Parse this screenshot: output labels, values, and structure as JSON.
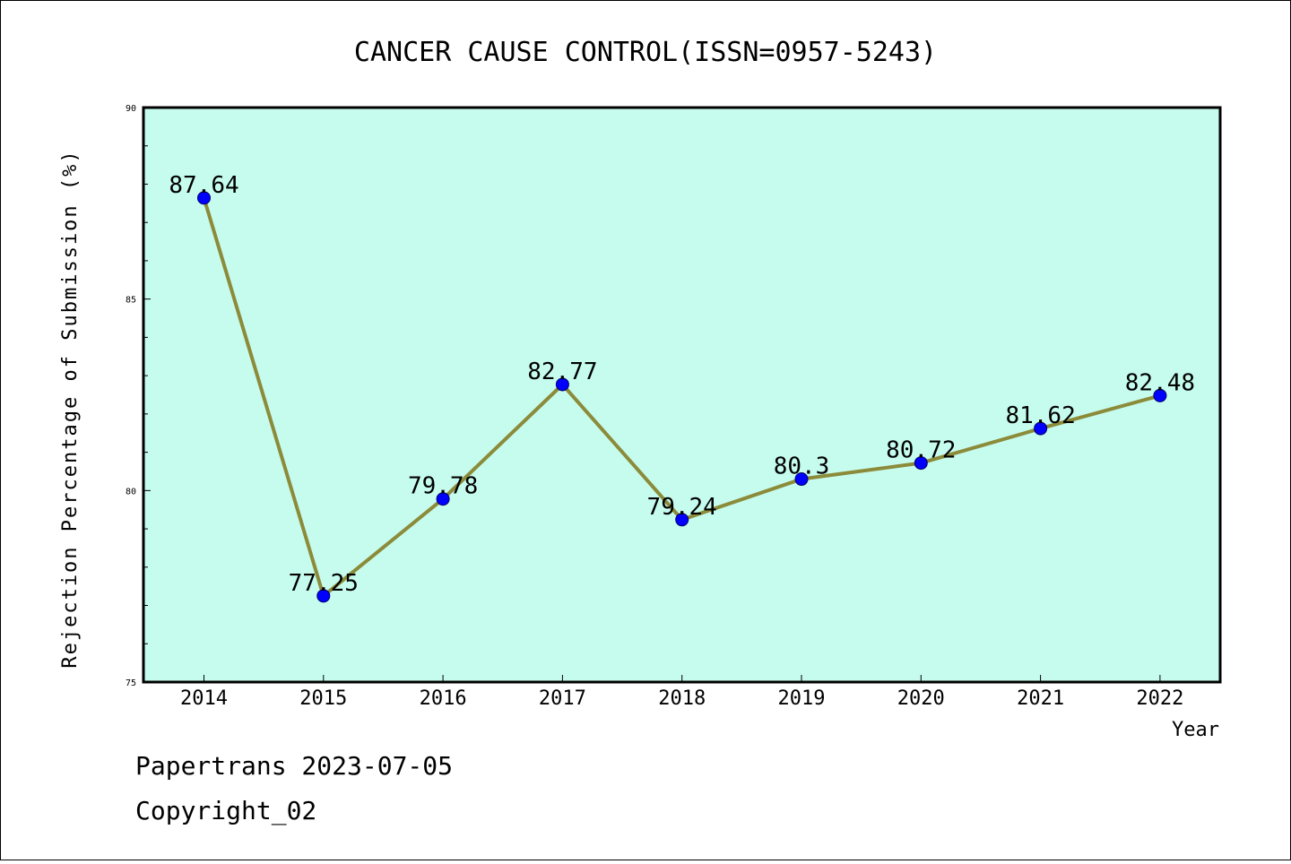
{
  "chart_data": {
    "type": "line",
    "title": "CANCER CAUSE CONTROL(ISSN=0957-5243)",
    "xlabel": "Year",
    "ylabel": "Rejection Percentage of Submission (%)",
    "categories": [
      "2014",
      "2015",
      "2016",
      "2017",
      "2018",
      "2019",
      "2020",
      "2021",
      "2022"
    ],
    "values": [
      87.64,
      77.25,
      79.78,
      82.77,
      79.24,
      80.3,
      80.72,
      81.62,
      82.48
    ],
    "data_labels": [
      "87.64",
      "77.25",
      "79.78",
      "82.77",
      "79.24",
      "80.3",
      "80.72",
      "81.62",
      "82.48"
    ],
    "ylim": [
      75,
      90
    ],
    "yticks": [
      "75",
      "80",
      "85",
      "90"
    ],
    "grid": false,
    "colors": {
      "plot_background": "#c6fcee",
      "line": "#8b8b3a",
      "marker": "#0000ff"
    }
  },
  "footer": {
    "line1": "Papertrans 2023-07-05",
    "line2": "Copyright_02"
  }
}
